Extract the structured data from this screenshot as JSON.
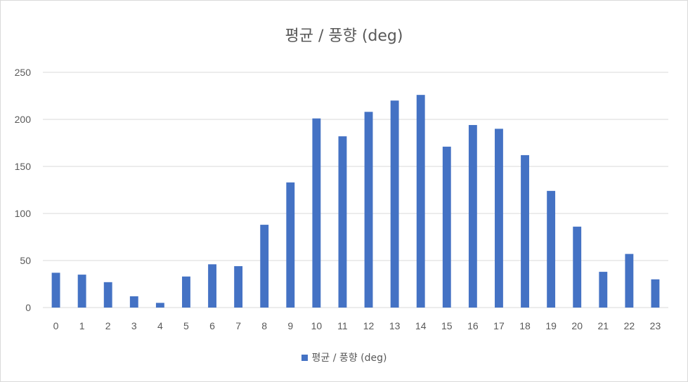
{
  "chart_data": {
    "type": "bar",
    "title": "평균 /  풍향 (deg)",
    "xlabel": "",
    "ylabel": "",
    "categories": [
      "0",
      "1",
      "2",
      "3",
      "4",
      "5",
      "6",
      "7",
      "8",
      "9",
      "10",
      "11",
      "12",
      "13",
      "14",
      "15",
      "16",
      "17",
      "18",
      "19",
      "20",
      "21",
      "22",
      "23"
    ],
    "series": [
      {
        "name": "평균 /  풍향 (deg)",
        "values": [
          37,
          35,
          27,
          12,
          5,
          33,
          46,
          44,
          88,
          133,
          201,
          182,
          208,
          220,
          226,
          171,
          194,
          190,
          162,
          124,
          86,
          38,
          57,
          30
        ]
      }
    ],
    "ylim": [
      0,
      250
    ],
    "yticks": [
      "0",
      "50",
      "100",
      "150",
      "200",
      "250"
    ],
    "grid": true,
    "legend": "bottom",
    "colors": {
      "bar": "#4472c4",
      "grid": "#d9d9d9",
      "text": "#595959"
    }
  }
}
